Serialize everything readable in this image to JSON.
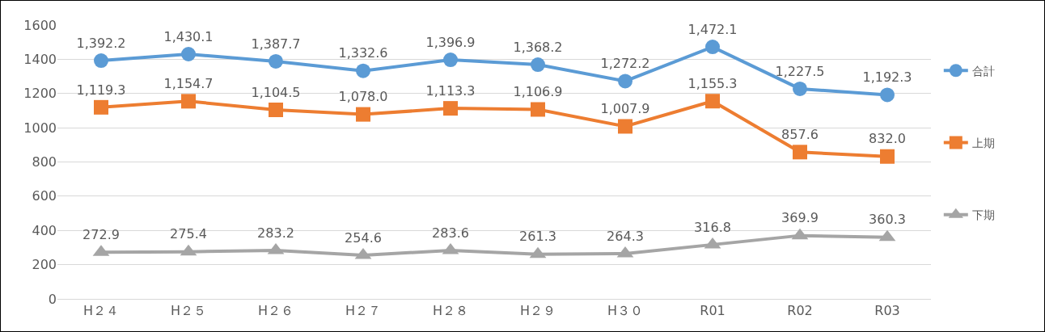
{
  "chart_data": {
    "type": "line",
    "categories": [
      "H２４",
      "H２５",
      "H２６",
      "H２７",
      "H２８",
      "H２９",
      "H３０",
      "R01",
      "R02",
      "R03"
    ],
    "series": [
      {
        "name": "合計",
        "color": "#5b9bd5",
        "marker": "circle",
        "values": [
          1392.2,
          1430.1,
          1387.7,
          1332.6,
          1396.9,
          1368.2,
          1272.2,
          1472.1,
          1227.5,
          1192.3
        ],
        "value_labels": [
          "1,392.2",
          "1,430.1",
          "1,387.7",
          "1,332.6",
          "1,396.9",
          "1,368.2",
          "1,272.2",
          "1,472.1",
          "1,227.5",
          "1,192.3"
        ]
      },
      {
        "name": "上期",
        "color": "#ed7d31",
        "marker": "square",
        "values": [
          1119.3,
          1154.7,
          1104.5,
          1078.0,
          1113.3,
          1106.9,
          1007.9,
          1155.3,
          857.6,
          832.0
        ],
        "value_labels": [
          "1,119.3",
          "1,154.7",
          "1,104.5",
          "1,078.0",
          "1,113.3",
          "1,106.9",
          "1,007.9",
          "1,155.3",
          "857.6",
          "832.0"
        ]
      },
      {
        "name": "下期",
        "color": "#a5a5a5",
        "marker": "triangle",
        "values": [
          272.9,
          275.4,
          283.2,
          254.6,
          283.6,
          261.3,
          264.3,
          316.8,
          369.9,
          360.3
        ],
        "value_labels": [
          "272.9",
          "275.4",
          "283.2",
          "254.6",
          "283.6",
          "261.3",
          "264.3",
          "316.8",
          "369.9",
          "360.3"
        ]
      }
    ],
    "ylim": [
      0,
      1600
    ],
    "yticks": [
      0,
      200,
      400,
      600,
      800,
      1000,
      1200,
      1400,
      1600
    ],
    "grid": "y",
    "legend": "right",
    "line_style": "solid"
  }
}
